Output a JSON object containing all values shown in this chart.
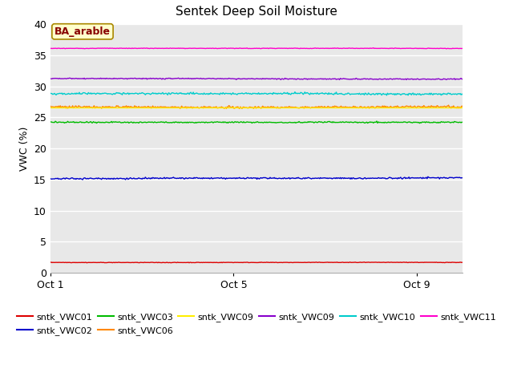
{
  "title": "Sentek Deep Soil Moisture",
  "ylabel": "VWC (%)",
  "annotation": "BA_arable",
  "ylim": [
    0,
    40
  ],
  "yticks": [
    0,
    5,
    10,
    15,
    20,
    25,
    30,
    35,
    40
  ],
  "xtick_labels": [
    "Oct 1",
    "Oct 5",
    "Oct 9"
  ],
  "xtick_positions": [
    0.0,
    0.4444,
    0.8889
  ],
  "n_points": 500,
  "series": [
    {
      "label": "sntk_VWC01",
      "color": "#dd0000",
      "mean": 1.65,
      "noise_scale": 0.04
    },
    {
      "label": "sntk_VWC02",
      "color": "#0000cc",
      "mean": 15.2,
      "noise_scale": 0.12
    },
    {
      "label": "sntk_VWC03",
      "color": "#00bb00",
      "mean": 24.2,
      "noise_scale": 0.1
    },
    {
      "label": "sntk_VWC06",
      "color": "#ff8800",
      "mean": 26.65,
      "noise_scale": 0.18
    },
    {
      "label": "sntk_VWC09",
      "color": "#ffee00",
      "mean": 26.6,
      "noise_scale": 0.0
    },
    {
      "label": "sntk_VWC09",
      "color": "#8800cc",
      "mean": 31.2,
      "noise_scale": 0.08
    },
    {
      "label": "sntk_VWC10",
      "color": "#00cccc",
      "mean": 28.8,
      "noise_scale": 0.15
    },
    {
      "label": "sntk_VWC11",
      "color": "#ff00cc",
      "mean": 36.1,
      "noise_scale": 0.04
    }
  ],
  "bg_color": "#e8e8e8",
  "grid_color": "#ffffff",
  "title_fontsize": 11,
  "legend_fontsize": 8,
  "tick_fontsize": 9,
  "ylabel_fontsize": 9,
  "annotation_bg": "#ffffcc",
  "annotation_border": "#aa8800",
  "annotation_text_color": "#880000",
  "annotation_fontsize": 9,
  "figsize": [
    6.4,
    4.8
  ],
  "dpi": 100
}
